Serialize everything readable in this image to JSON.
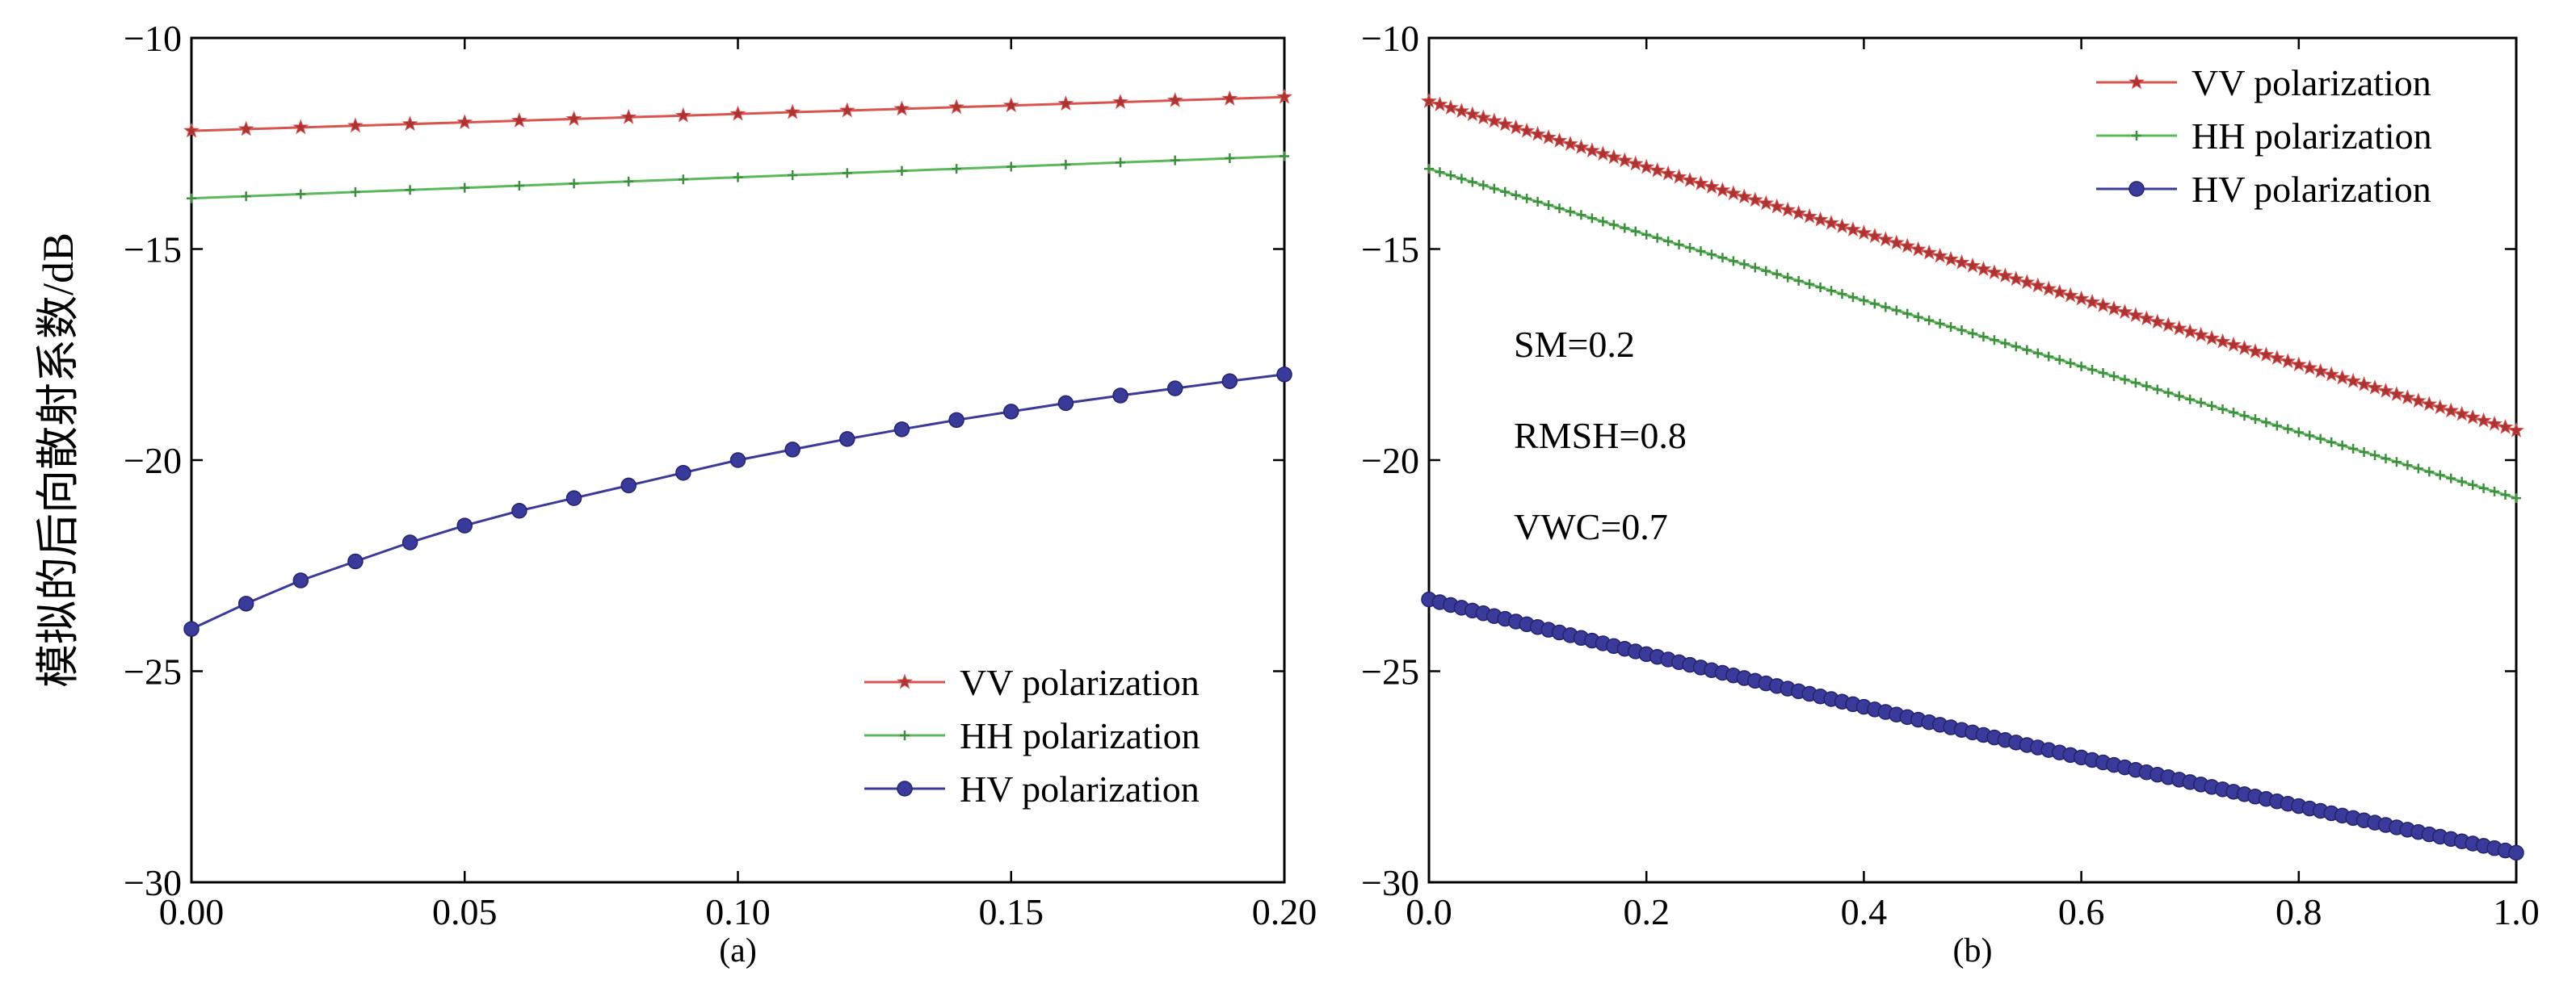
{
  "figure": {
    "ylabel": "模拟的后向散射系数/dB"
  },
  "chart_data": [
    {
      "type": "line",
      "panel_label": "(a)",
      "xlim": [
        0.0,
        0.2
      ],
      "ylim": [
        -30,
        -10
      ],
      "x_ticks": [
        "0.00",
        "0.05",
        "0.10",
        "0.15",
        "0.20"
      ],
      "y_ticks": [
        "−10",
        "−15",
        "−20",
        "−25",
        "−30"
      ],
      "legend_position": "lower-right",
      "grid": false,
      "x": [
        0.0,
        0.01,
        0.02,
        0.03,
        0.04,
        0.05,
        0.06,
        0.07,
        0.08,
        0.09,
        0.1,
        0.11,
        0.12,
        0.13,
        0.14,
        0.15,
        0.16,
        0.17,
        0.18,
        0.19,
        0.2
      ],
      "series": [
        {
          "name": "VV polarization",
          "color": "#d9534f",
          "marker": "star",
          "values": [
            -12.2,
            -12.16,
            -12.12,
            -12.08,
            -12.04,
            -12.0,
            -11.96,
            -11.92,
            -11.88,
            -11.84,
            -11.8,
            -11.76,
            -11.72,
            -11.68,
            -11.64,
            -11.6,
            -11.56,
            -11.52,
            -11.48,
            -11.44,
            -11.4
          ]
        },
        {
          "name": "HH polarization",
          "color": "#5cb85c",
          "marker": "plus",
          "values": [
            -13.8,
            -13.75,
            -13.7,
            -13.65,
            -13.6,
            -13.55,
            -13.5,
            -13.45,
            -13.4,
            -13.35,
            -13.3,
            -13.25,
            -13.2,
            -13.15,
            -13.1,
            -13.05,
            -13.0,
            -12.95,
            -12.9,
            -12.85,
            -12.8
          ]
        },
        {
          "name": "HV polarization",
          "color": "#3a3a9a",
          "marker": "circle",
          "values": [
            -24.0,
            -23.4,
            -22.85,
            -22.4,
            -21.95,
            -21.55,
            -21.2,
            -20.9,
            -20.6,
            -20.3,
            -20.0,
            -19.75,
            -19.5,
            -19.27,
            -19.05,
            -18.85,
            -18.65,
            -18.47,
            -18.3,
            -18.13,
            -17.97
          ]
        }
      ]
    },
    {
      "type": "line",
      "panel_label": "(b)",
      "xlim": [
        0.0,
        1.0
      ],
      "ylim": [
        -30,
        -10
      ],
      "x_ticks": [
        "0.0",
        "0.2",
        "0.4",
        "0.6",
        "0.8",
        "1.0"
      ],
      "y_ticks": [
        "−10",
        "−15",
        "−20",
        "−25",
        "−30"
      ],
      "legend_position": "top-right",
      "grid": false,
      "annotations": [
        "SM=0.2",
        "RMSH=0.8",
        "VWC=0.7"
      ],
      "x_range": [
        0.0,
        1.0
      ],
      "n_points": 101,
      "series": [
        {
          "name": "VV polarization",
          "color": "#d9534f",
          "marker": "star",
          "endpoints": [
            -11.5,
            -19.3
          ]
        },
        {
          "name": "HH polarization",
          "color": "#5cb85c",
          "marker": "plus",
          "endpoints": [
            -13.1,
            -20.9
          ]
        },
        {
          "name": "HV polarization",
          "color": "#3a3a9a",
          "marker": "circle",
          "endpoints": [
            -23.3,
            -29.3
          ],
          "curvature": 0.6
        }
      ]
    }
  ]
}
